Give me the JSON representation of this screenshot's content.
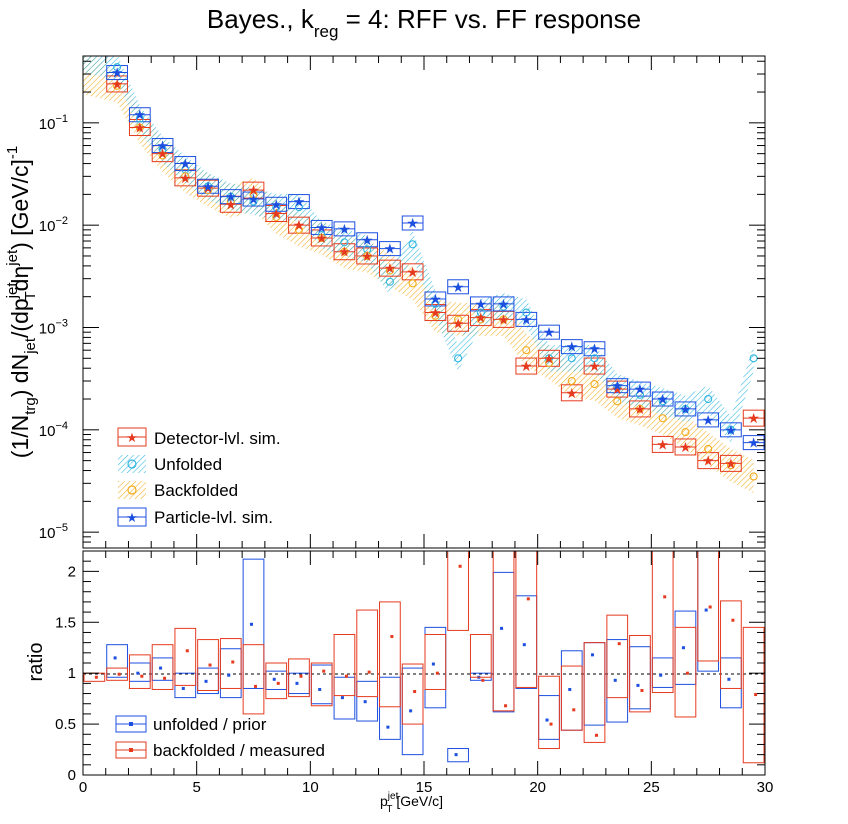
{
  "chart_data": [
    {
      "type": "scatter",
      "title": "Bayes., k",
      "title_sub": "reg",
      "title_rest": " = 4: RFF vs. FF response",
      "ylabel": "(1/N_trg) dN_jet/(dp_T^jet dη^jet) [GeV/c]^-1",
      "ylog": true,
      "ylim": [
        7e-06,
        0.45
      ],
      "xlim": [
        0,
        30
      ],
      "y_ticks": [
        {
          "value": 0.1,
          "base": "10",
          "exp": "−1"
        },
        {
          "value": 0.01,
          "base": "10",
          "exp": "−2"
        },
        {
          "value": 0.001,
          "base": "10",
          "exp": "−3"
        },
        {
          "value": 0.0001,
          "base": "10",
          "exp": "−4"
        },
        {
          "value": 1e-05,
          "base": "10",
          "exp": "−5"
        }
      ],
      "legend_position": "bottom-left",
      "legend": [
        {
          "label": "Detector-lvl. sim.",
          "color": "#e63a1e",
          "style": "box-star"
        },
        {
          "label": "Unfolded",
          "color": "#2fb6e0",
          "style": "hatch-circle"
        },
        {
          "label": "Backfolded",
          "color": "#f2ac1c",
          "style": "hatch-circle"
        },
        {
          "label": "Particle-lvl. sim.",
          "color": "#1c4fe0",
          "style": "box-star"
        }
      ],
      "x": [
        0.5,
        1.5,
        2.5,
        3.5,
        4.5,
        5.5,
        6.5,
        7.5,
        8.5,
        9.5,
        10.5,
        11.5,
        12.5,
        13.5,
        14.5,
        15.5,
        16.5,
        17.5,
        18.5,
        19.5,
        20.5,
        21.5,
        22.5,
        23.5,
        24.5,
        25.5,
        26.5,
        27.5,
        28.5,
        29.5
      ],
      "series": [
        {
          "name": "Detector-lvl. sim.",
          "color": "#e63a1e",
          "values": [
            null,
            0.24,
            0.09,
            0.05,
            0.029,
            0.023,
            0.016,
            0.022,
            0.013,
            0.01,
            0.0075,
            0.0055,
            0.005,
            0.0038,
            0.0035,
            0.0014,
            0.0011,
            0.00125,
            0.0012,
            0.00042,
            0.0005,
            0.00023,
            0.00042,
            0.00025,
            0.00016,
            7.2e-05,
            6.8e-05,
            5e-05,
            4.7e-05,
            0.00013
          ]
        },
        {
          "name": "Unfolded",
          "color": "#2fb6e0",
          "values": [
            null,
            0.35,
            0.11,
            0.055,
            0.035,
            0.024,
            0.019,
            0.017,
            0.015,
            0.015,
            0.008,
            0.0068,
            0.0058,
            0.0028,
            0.0065,
            0.0017,
            0.0005,
            0.0014,
            0.0016,
            0.0014,
            0.0005,
            0.0005,
            0.0005,
            0.00026,
            0.00022,
            0.00019,
            0.00016,
            0.0002,
            0.0001,
            0.0005
          ]
        },
        {
          "name": "Backfolded",
          "color": "#f2ac1c",
          "values": [
            null,
            0.23,
            0.09,
            0.048,
            0.03,
            0.022,
            0.017,
            0.02,
            0.012,
            0.009,
            0.0075,
            0.0055,
            0.005,
            0.0036,
            0.0027,
            0.0013,
            0.0012,
            0.0012,
            0.0012,
            0.0006,
            0.00045,
            0.0003,
            0.00028,
            0.00019,
            0.00016,
            0.00013,
            9.5e-05,
            6.5e-05,
            4.5e-05,
            3.5e-05
          ]
        },
        {
          "name": "Particle-lvl. sim.",
          "color": "#1c4fe0",
          "values": [
            null,
            0.31,
            0.12,
            0.06,
            0.04,
            0.024,
            0.019,
            0.018,
            0.016,
            0.017,
            0.0095,
            0.0092,
            0.0072,
            0.0059,
            0.0105,
            0.0019,
            0.0025,
            0.0017,
            0.0017,
            0.0012,
            0.0009,
            0.00065,
            0.00062,
            0.00027,
            0.00025,
            0.0002,
            0.00016,
            0.000125,
            0.0001,
            7.5e-05
          ]
        }
      ]
    },
    {
      "type": "scatter",
      "ylabel": "ratio",
      "xlabel": "p_T^jet [GeV/c]",
      "xlabel_main": "p",
      "xlabel_sub": "T",
      "xlabel_sup": "jet",
      "xlabel_unit": " [GeV/c]",
      "ylim": [
        0,
        2.2
      ],
      "xlim": [
        0,
        30
      ],
      "x_ticks": [
        "0",
        "5",
        "10",
        "15",
        "20",
        "25",
        "30"
      ],
      "y_ticks": [
        "0",
        "0.5",
        "1",
        "1.5",
        "2"
      ],
      "reference_line": 1,
      "legend_position": "bottom-left",
      "legend": [
        {
          "label": "unfolded / prior",
          "color": "#1c4fe0"
        },
        {
          "label": "backfolded / measured",
          "color": "#e63a1e"
        }
      ],
      "x": [
        0.5,
        1.5,
        2.5,
        3.5,
        4.5,
        5.5,
        6.5,
        7.5,
        8.5,
        9.5,
        10.5,
        11.5,
        12.5,
        13.5,
        14.5,
        15.5,
        16.5,
        17.5,
        18.5,
        19.5,
        20.5,
        21.5,
        22.5,
        23.5,
        24.5,
        25.5,
        26.5,
        27.5,
        28.5,
        29.5
      ],
      "series": [
        {
          "name": "unfolded / prior",
          "color": "#1c4fe0",
          "values": [
            null,
            1.15,
            1.0,
            1.05,
            0.85,
            0.92,
            0.98,
            1.48,
            0.94,
            0.9,
            0.84,
            0.76,
            0.72,
            0.47,
            0.63,
            1.09,
            0.2,
            0.96,
            1.44,
            1.28,
            0.54,
            0.84,
            1.18,
            0.93,
            0.88,
            0.98,
            1.25,
            1.62,
            0.94,
            null
          ],
          "err_low": [
            null,
            0.96,
            0.92,
            0.93,
            0.76,
            0.8,
            0.76,
            0.85,
            0.84,
            0.8,
            0.7,
            0.55,
            0.53,
            0.35,
            0.2,
            0.66,
            0.13,
            0.93,
            0.62,
            0.85,
            0.35,
            0.44,
            0.49,
            0.52,
            0.65,
            0.86,
            0.89,
            1.02,
            0.66,
            null
          ],
          "err_high": [
            null,
            1.28,
            1.1,
            1.15,
            1.0,
            1.05,
            1.24,
            2.12,
            1.02,
            1.0,
            1.08,
            0.96,
            0.92,
            0.96,
            1.05,
            1.45,
            0.26,
            1.0,
            1.99,
            1.76,
            0.78,
            1.22,
            1.3,
            1.33,
            1.26,
            1.15,
            1.61,
            2.2,
            1.15,
            null
          ]
        },
        {
          "name": "backfolded / measured",
          "color": "#e63a1e",
          "values": [
            0.96,
            0.99,
            0.97,
            0.95,
            1.22,
            1.08,
            1.11,
            0.87,
            0.9,
            0.97,
            1.02,
            0.97,
            1.01,
            1.36,
            0.82,
            1.0,
            2.05,
            0.93,
            0.68,
            1.73,
            0.5,
            0.64,
            0.39,
            1.29,
            0.83,
            1.75,
            1.0,
            1.65,
            1.52,
            0.79
          ],
          "err_low": [
            0.92,
            0.93,
            0.85,
            0.84,
            0.88,
            0.83,
            0.85,
            0.6,
            0.75,
            0.77,
            0.68,
            0.78,
            0.77,
            0.67,
            0.5,
            0.84,
            1.42,
            0.96,
            0.63,
            0.86,
            0.26,
            0.44,
            0.32,
            0.76,
            0.62,
            0.81,
            0.57,
            1.12,
            0.85,
            0.12
          ],
          "err_high": [
            1.0,
            1.05,
            1.18,
            1.28,
            1.44,
            1.33,
            1.34,
            1.28,
            1.1,
            1.14,
            1.1,
            1.38,
            1.62,
            1.7,
            1.09,
            1.38,
            2.2,
            1.38,
            2.2,
            2.2,
            0.97,
            1.07,
            1.3,
            1.57,
            1.37,
            2.2,
            1.45,
            2.2,
            1.71,
            1.45
          ]
        }
      ]
    }
  ]
}
